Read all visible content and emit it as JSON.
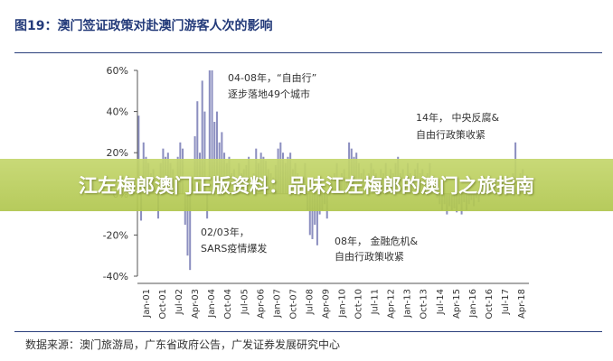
{
  "figure_title": "图19：澳门签证政策对赴澳门游客人次的影响",
  "source_note": "数据来源：澳门旅游局，广东省政府公告，广发证券发展研究中心",
  "overlay_banner": "江左梅郎澳门正版资料：品味江左梅郎的澳门之旅指南",
  "colors": {
    "bars": "#8c8fc0",
    "axis": "#555555",
    "title": "#243b7a",
    "banner": "#b8cc5a"
  },
  "chart_data": {
    "type": "bar",
    "xlabel": "",
    "ylabel": "",
    "ylim": [
      -40,
      60
    ],
    "yticks": [
      -40,
      -20,
      0,
      20,
      40,
      60
    ],
    "ytick_labels": [
      "-40%",
      "-20%",
      "0%",
      "20%",
      "40%",
      "60%"
    ],
    "xtick_labels": [
      "Jan-01",
      "Oct-01",
      "Jul-02",
      "Apr-03",
      "Jan-04",
      "Oct-04",
      "Jul-05",
      "Apr-06",
      "Jan-07",
      "Oct-07",
      "Jul-08",
      "Apr-09",
      "Jan-10",
      "Oct-10",
      "Jul-11",
      "Apr-12",
      "Jan-13",
      "Oct-13",
      "Jul-14",
      "Apr-15",
      "Jan-16",
      "Oct-16",
      "Jul-17",
      "Apr-18"
    ],
    "grid": false,
    "annotations": [
      {
        "text_line1": "04-08年，“自由行”",
        "text_line2": "逐步落地49个城市"
      },
      {
        "text_line1": "02/03年，",
        "text_line2": "SARS疫情爆发"
      },
      {
        "text_line1": "08年， 金融危机&",
        "text_line2": "自由行政策收紧"
      },
      {
        "text_line1": "14年， 中央反腐&",
        "text_line2": "自由行政策收紧"
      }
    ],
    "values": [
      38,
      -13,
      25,
      18,
      15,
      10,
      12,
      8,
      -12,
      15,
      22,
      18,
      20,
      15,
      12,
      8,
      18,
      25,
      22,
      -15,
      -30,
      -37,
      5,
      28,
      45,
      20,
      55,
      40,
      -12,
      60,
      60,
      35,
      40,
      25,
      30,
      20,
      15,
      18,
      10,
      12,
      8,
      15,
      10,
      12,
      14,
      18,
      5,
      10,
      22,
      15,
      20,
      18,
      16,
      12,
      10,
      8,
      14,
      22,
      25,
      20,
      15,
      18,
      20,
      12,
      15,
      10,
      8,
      5,
      15,
      -8,
      -20,
      -22,
      -15,
      -25,
      -10,
      -8,
      -5,
      -12,
      5,
      8,
      10,
      15,
      8,
      10,
      12,
      8,
      25,
      22,
      18,
      20,
      15,
      10,
      12,
      8,
      10,
      15,
      12,
      10,
      8,
      12,
      10,
      15,
      8,
      12,
      10,
      15,
      18,
      10,
      12,
      8,
      15,
      10,
      8,
      12,
      15,
      10,
      12,
      8,
      10,
      15,
      8,
      5,
      -2,
      -5,
      -8,
      -5,
      -10,
      -6,
      -8,
      -7,
      -9,
      -5,
      -10,
      -4,
      -8,
      -5,
      -3,
      -6,
      -2,
      -4,
      3,
      5,
      2,
      4,
      6,
      3,
      5,
      8,
      4,
      6,
      7,
      5,
      2,
      10,
      25,
      8,
      10,
      12,
      6,
      8
    ]
  }
}
